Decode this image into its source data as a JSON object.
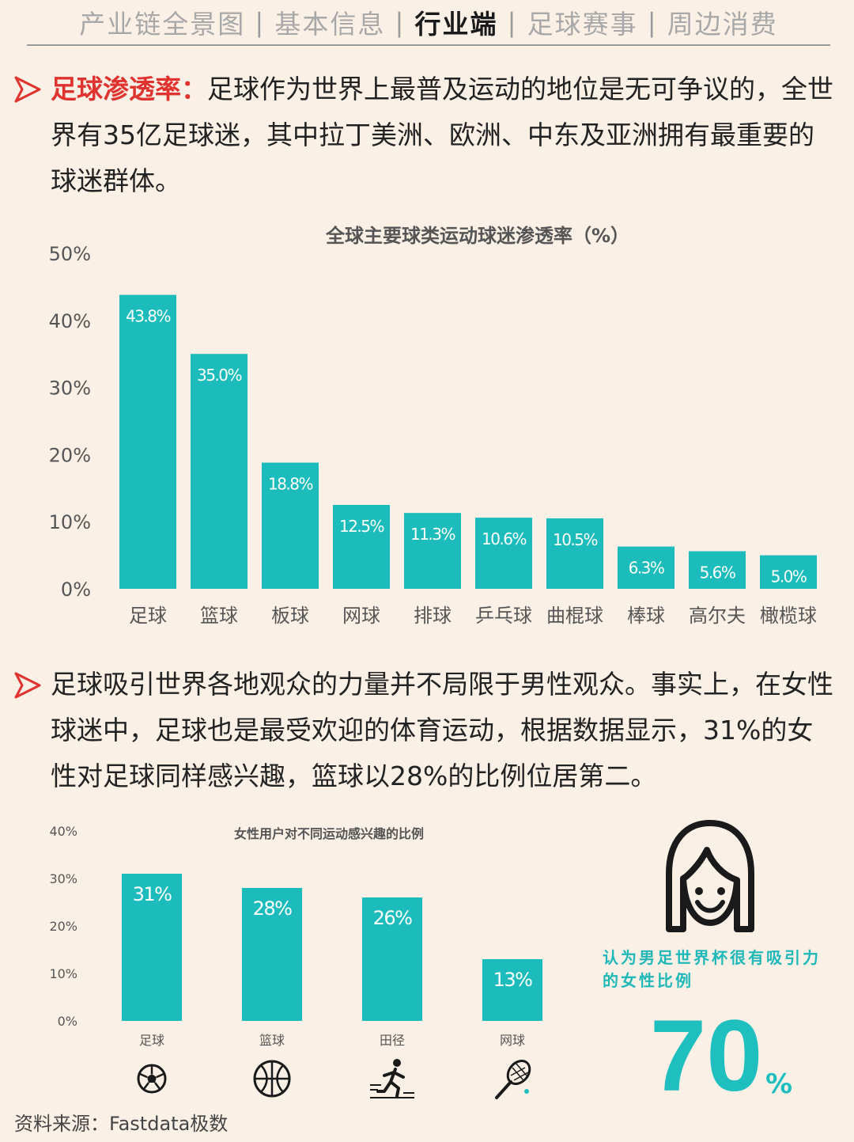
{
  "nav": {
    "items": [
      "产业链全景图",
      "基本信息",
      "行业端",
      "足球赛事",
      "周边消费"
    ],
    "active_index": 2
  },
  "section1": {
    "highlight": "足球渗透率：",
    "text": "足球作为世界上最普及运动的地位是无可争议的，全世界有35亿足球迷，其中拉丁美洲、欧洲、中东及亚洲拥有最重要的球迷群体。"
  },
  "section2": {
    "text": "足球吸引世界各地观众的力量并不局限于男性观众。事实上，在女性球迷中，足球也是最受欢迎的体育运动，根据数据显示，31%的女性对足球同样感兴趣，篮球以28%的比例位居第二。"
  },
  "colors": {
    "accent": "#e0332f",
    "bar": "#1cbcbc",
    "background": "#fbf0e6"
  },
  "chart_data": [
    {
      "type": "bar",
      "title": "全球主要球类运动球迷渗透率（%）",
      "categories": [
        "足球",
        "篮球",
        "板球",
        "网球",
        "排球",
        "乒乓球",
        "曲棍球",
        "棒球",
        "高尔夫",
        "橄榄球"
      ],
      "values": [
        43.8,
        35.0,
        18.8,
        12.5,
        11.3,
        10.6,
        10.5,
        6.3,
        5.6,
        5.0
      ],
      "value_labels": [
        "43.8%",
        "35.0%",
        "18.8%",
        "12.5%",
        "11.3%",
        "10.6%",
        "10.5%",
        "6.3%",
        "5.6%",
        "5.0%"
      ],
      "yticks": [
        "0%",
        "10%",
        "20%",
        "30%",
        "40%",
        "50%"
      ],
      "ylim": [
        0,
        50
      ],
      "grid": false
    },
    {
      "type": "bar",
      "title": "女性用户对不同运动感兴趣的比例",
      "categories": [
        "足球",
        "篮球",
        "田径",
        "网球"
      ],
      "category_icons": [
        "soccer-ball-icon",
        "basketball-icon",
        "runner-icon",
        "tennis-racket-icon"
      ],
      "values": [
        31,
        28,
        26,
        13
      ],
      "value_labels": [
        "31%",
        "28%",
        "26%",
        "13%"
      ],
      "yticks": [
        "0%",
        "10%",
        "20%",
        "30%",
        "40%"
      ],
      "ylim": [
        0,
        40
      ],
      "grid": false
    }
  ],
  "stat": {
    "caption": "认为男足世界杯很有吸引力的女性比例",
    "value": "70",
    "unit": "%",
    "icon": "woman-face-icon"
  },
  "source": "资料来源：Fastdata极数"
}
